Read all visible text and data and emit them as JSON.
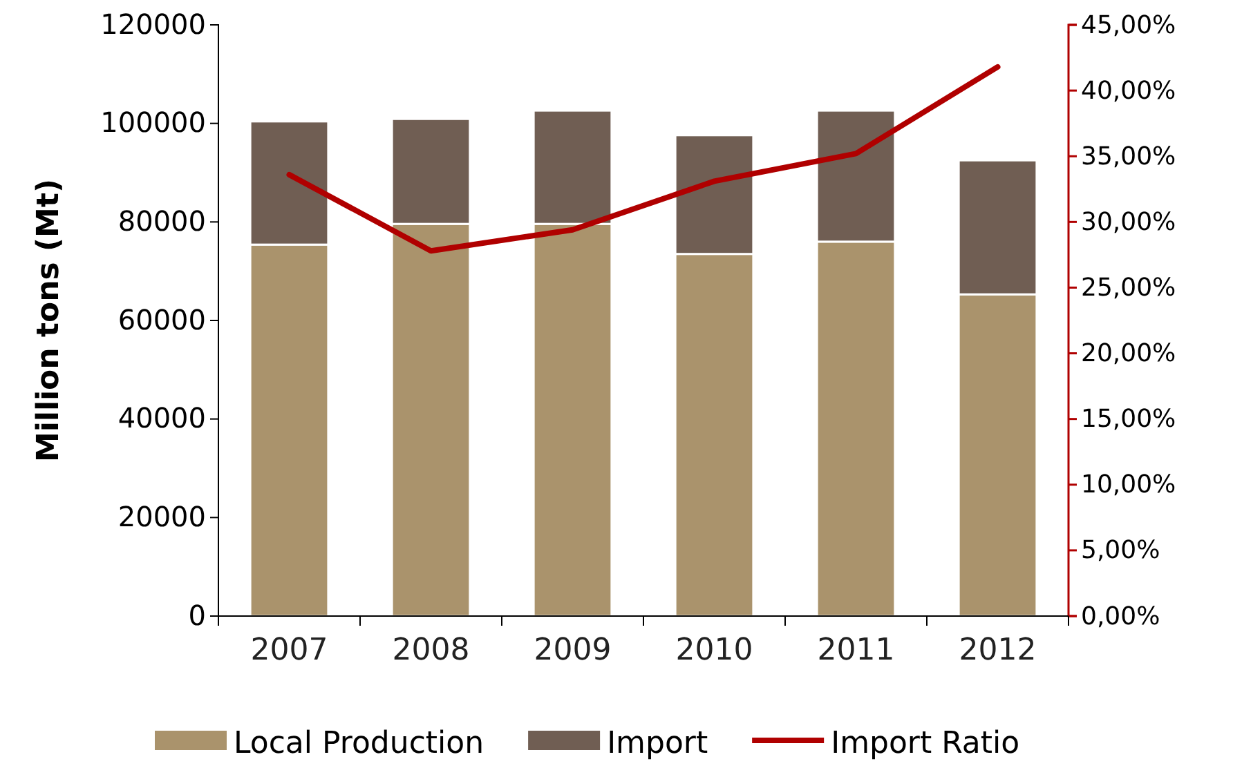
{
  "chart_data": {
    "type": "bar",
    "stacked": true,
    "ylabel": "Million tons (Mt)",
    "categories": [
      "2007",
      "2008",
      "2009",
      "2010",
      "2011",
      "2012"
    ],
    "series": [
      {
        "name": "Local Production",
        "color": "#aa936c",
        "values": [
          75400,
          79600,
          79600,
          73500,
          76000,
          65300
        ]
      },
      {
        "name": "Import",
        "color": "#705e53",
        "values": [
          25000,
          21300,
          23000,
          24100,
          26600,
          27200
        ]
      },
      {
        "name": "Import Ratio",
        "type": "line",
        "axis": "y2",
        "color": "#b00000",
        "values": [
          33.6,
          27.8,
          29.4,
          33.1,
          35.2,
          41.8
        ]
      }
    ],
    "ylim": [
      0,
      120000
    ],
    "yticks": [
      0,
      20000,
      40000,
      60000,
      80000,
      100000,
      120000
    ],
    "y2lim": [
      0,
      45
    ],
    "y2ticks": [
      {
        "value": 0,
        "label": "0,00%"
      },
      {
        "value": 5,
        "label": "5,00%"
      },
      {
        "value": 10,
        "label": "10,00%"
      },
      {
        "value": 15,
        "label": "15,00%"
      },
      {
        "value": 20,
        "label": "20,00%"
      },
      {
        "value": 25,
        "label": "25,00%"
      },
      {
        "value": 30,
        "label": "30,00%"
      },
      {
        "value": 35,
        "label": "35,00%"
      },
      {
        "value": 40,
        "label": "40,00%"
      },
      {
        "value": 45,
        "label": "45,00%"
      }
    ],
    "legend": "bottom",
    "line_style": "solid"
  }
}
